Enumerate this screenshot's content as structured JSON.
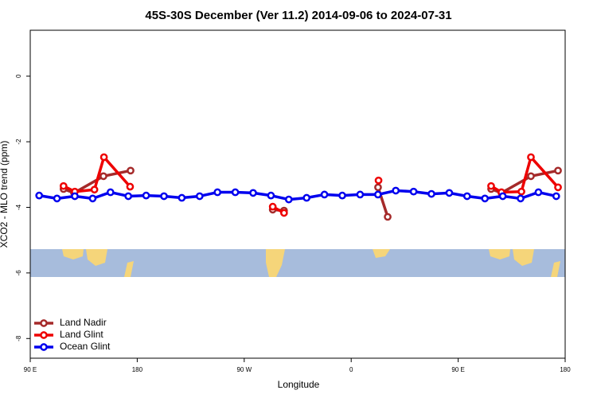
{
  "chart_data": {
    "type": "line",
    "title": "45S-30S December (Ver 11.2)   2014-09-06 to 2024-07-31",
    "x_label": "Longitude",
    "y_label": "XCO2 - MLO trend (ppm)",
    "xlim": [
      90,
      540
    ],
    "ylim": [
      -8.6,
      1.4
    ],
    "xticks": [
      {
        "value": 90,
        "label": "90 E"
      },
      {
        "value": 180,
        "label": "180"
      },
      {
        "value": 270,
        "label": "90 W"
      },
      {
        "value": 360,
        "label": "0"
      },
      {
        "value": 450,
        "label": "90 E"
      },
      {
        "value": 540,
        "label": "180"
      }
    ],
    "yticks": [
      0,
      -2,
      -4,
      -6,
      -8
    ],
    "legend": "bottom-left",
    "series": [
      {
        "name": "Land Nadir",
        "color": "#a52a2a",
        "x": [
          118,
          126.8,
          151.6,
          174.4,
          null,
          294,
          303.5,
          null,
          382.6,
          390.7,
          null,
          477.7,
          486.4,
          511.2,
          534
        ],
        "values": [
          -3.44,
          -3.56,
          -3.05,
          -2.88,
          null,
          -4.07,
          -4.1,
          null,
          -3.39,
          -4.29,
          null,
          -3.44,
          -3.56,
          -3.05,
          -2.88
        ]
      },
      {
        "name": "Land Glint",
        "color": "#ee0000",
        "x": [
          118,
          127.5,
          144,
          152,
          174,
          null,
          294,
          303.5,
          null,
          383,
          null,
          477.7,
          486.4,
          503.2,
          511.2,
          534
        ],
        "values": [
          -3.35,
          -3.52,
          -3.46,
          -2.47,
          -3.37,
          null,
          -3.98,
          -4.17,
          null,
          -3.18,
          null,
          -3.35,
          -3.54,
          -3.52,
          -2.47,
          -3.39
        ]
      },
      {
        "name": "Ocean Glint",
        "color": "#0000ee",
        "x": [
          97.5,
          112.5,
          127.5,
          142.5,
          157.5,
          172.5,
          187.5,
          202.5,
          217.5,
          232.5,
          247.5,
          262.5,
          277.5,
          292.5,
          307.5,
          322.5,
          337.5,
          352.5,
          367.5,
          382.5,
          397.5,
          412.5,
          427.5,
          442.5,
          457.5,
          472.5,
          487.5,
          502.5,
          517.5,
          532.5
        ],
        "values": [
          -3.64,
          -3.73,
          -3.66,
          -3.73,
          -3.54,
          -3.66,
          -3.64,
          -3.66,
          -3.71,
          -3.66,
          -3.54,
          -3.54,
          -3.56,
          -3.64,
          -3.76,
          -3.71,
          -3.61,
          -3.64,
          -3.61,
          -3.61,
          -3.49,
          -3.52,
          -3.59,
          -3.56,
          -3.66,
          -3.73,
          -3.66,
          -3.73,
          -3.54,
          -3.66
        ]
      }
    ]
  }
}
